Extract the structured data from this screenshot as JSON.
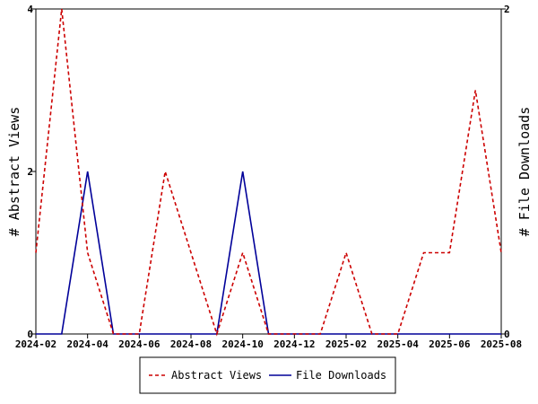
{
  "chart_data": {
    "type": "line",
    "x": [
      "2024-02",
      "2024-03",
      "2024-04",
      "2024-05",
      "2024-06",
      "2024-07",
      "2024-08",
      "2024-09",
      "2024-10",
      "2024-11",
      "2024-12",
      "2025-01",
      "2025-02",
      "2025-03",
      "2025-04",
      "2025-05",
      "2025-06",
      "2025-07",
      "2025-08"
    ],
    "x_tick_labels": [
      "2024-02",
      "2024-04",
      "2024-06",
      "2024-08",
      "2024-10",
      "2024-12",
      "2025-02",
      "2025-04",
      "2025-06",
      "2025-08"
    ],
    "series": [
      {
        "name": "Abstract Views",
        "axis": "left",
        "color": "#cc0000",
        "style": "dashed",
        "values": [
          1,
          4,
          1,
          0,
          0,
          2,
          1,
          0,
          1,
          0,
          0,
          0,
          1,
          0,
          0,
          1,
          1,
          3,
          1
        ]
      },
      {
        "name": "File Downloads",
        "axis": "right",
        "color": "#000099",
        "style": "solid",
        "values": [
          0,
          0,
          1,
          0,
          0,
          0,
          0,
          0,
          1,
          0,
          0,
          0,
          0,
          0,
          0,
          0,
          0,
          0,
          0
        ]
      }
    ],
    "ylabel": "# Abstract Views",
    "y2label": "# File Downloads",
    "ylim": [
      0,
      4
    ],
    "y2lim": [
      0,
      2
    ],
    "y_ticks": [
      "0",
      "2",
      "4"
    ],
    "y2_ticks": [
      "0",
      "2"
    ],
    "grid": false,
    "legend_placement": "bottom-center"
  }
}
